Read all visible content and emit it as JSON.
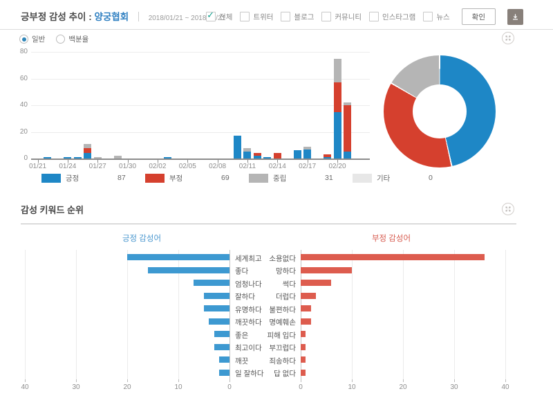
{
  "header": {
    "title_prefix": "긍부정 감성 추이 :",
    "title_keyword": "양궁협회",
    "date_range": "2018/01/21 ~ 2018/02/21",
    "filters": [
      {
        "label": "전체",
        "checked": true
      },
      {
        "label": "트위터",
        "checked": false
      },
      {
        "label": "블로그",
        "checked": false
      },
      {
        "label": "커뮤니티",
        "checked": false
      },
      {
        "label": "인스타그램",
        "checked": false
      },
      {
        "label": "뉴스",
        "checked": false
      }
    ],
    "confirm_label": "확인"
  },
  "trend_section": {
    "view_modes": [
      {
        "label": "일반",
        "selected": true
      },
      {
        "label": "백분율",
        "selected": false
      }
    ],
    "legend": [
      {
        "label": "긍정",
        "value": "87",
        "color": "#1e87c6"
      },
      {
        "label": "부정",
        "value": "69",
        "color": "#d5402e"
      },
      {
        "label": "중립",
        "value": "31",
        "color": "#b5b5b5"
      },
      {
        "label": "기타",
        "value": "0",
        "color": "#e7e7e7"
      }
    ]
  },
  "keyword_section": {
    "title": "감성 키워드 순위",
    "positive_title": "긍정 감성어",
    "negative_title": "부정 감성어"
  },
  "chart_data": [
    {
      "type": "bar",
      "subtype": "stacked-vertical-time",
      "title": "긍부정 감성 추이 : 양궁협회",
      "x_tick_labels": [
        "01/21",
        "01/24",
        "01/27",
        "01/30",
        "02/02",
        "02/05",
        "02/08",
        "02/11",
        "02/14",
        "02/17",
        "02/20"
      ],
      "y_ticks": [
        0,
        20,
        40,
        60,
        80
      ],
      "ylim": [
        0,
        80
      ],
      "series_order": [
        "positive",
        "negative",
        "neutral"
      ],
      "series_colors": {
        "positive": "#1e87c6",
        "negative": "#d5402e",
        "neutral": "#b5b5b5"
      },
      "bars": [
        {
          "date": "01/22",
          "positive": 1,
          "negative": 0,
          "neutral": 0
        },
        {
          "date": "01/24",
          "positive": 1,
          "negative": 0,
          "neutral": 0
        },
        {
          "date": "01/25",
          "positive": 1,
          "negative": 0,
          "neutral": 0
        },
        {
          "date": "01/26",
          "positive": 4,
          "negative": 4,
          "neutral": 3
        },
        {
          "date": "01/27",
          "positive": 0,
          "negative": 0,
          "neutral": 1
        },
        {
          "date": "01/29",
          "positive": 0,
          "negative": 0,
          "neutral": 2
        },
        {
          "date": "02/03",
          "positive": 1,
          "negative": 0,
          "neutral": 0
        },
        {
          "date": "02/10",
          "positive": 17,
          "negative": 0,
          "neutral": 0
        },
        {
          "date": "02/11",
          "positive": 5,
          "negative": 0,
          "neutral": 3
        },
        {
          "date": "02/12",
          "positive": 2,
          "negative": 2,
          "neutral": 0
        },
        {
          "date": "02/13",
          "positive": 1,
          "negative": 0,
          "neutral": 0
        },
        {
          "date": "02/14",
          "positive": 0,
          "negative": 4,
          "neutral": 0
        },
        {
          "date": "02/16",
          "positive": 6,
          "negative": 0,
          "neutral": 0
        },
        {
          "date": "02/17",
          "positive": 7,
          "negative": 0,
          "neutral": 2
        },
        {
          "date": "02/19",
          "positive": 1,
          "negative": 2,
          "neutral": 0
        },
        {
          "date": "02/20",
          "positive": 35,
          "negative": 22,
          "neutral": 18
        },
        {
          "date": "02/21",
          "positive": 5,
          "negative": 35,
          "neutral": 2
        }
      ]
    },
    {
      "type": "pie",
      "subtype": "donut",
      "slices": [
        {
          "label": "긍정",
          "value": 87,
          "color": "#1e87c6"
        },
        {
          "label": "부정",
          "value": 69,
          "color": "#d5402e"
        },
        {
          "label": "중립",
          "value": 31,
          "color": "#b5b5b5"
        },
        {
          "label": "기타",
          "value": 0,
          "color": "#e7e7e7"
        }
      ]
    },
    {
      "type": "bar",
      "subtype": "horizontal-reversed",
      "title": "긍정 감성어",
      "categories": [
        "세계최고",
        "좋다",
        "엄청나다",
        "잘하다",
        "유명하다",
        "깨끗하다",
        "좋은",
        "최고이다",
        "깨끗",
        "일 잘하다"
      ],
      "values": [
        20,
        16,
        7,
        5,
        5,
        4,
        3,
        3,
        2,
        2
      ],
      "x_ticks": [
        40,
        30,
        20,
        10,
        0
      ],
      "xlim": [
        0,
        40
      ],
      "color": "#3d99d1"
    },
    {
      "type": "bar",
      "subtype": "horizontal",
      "title": "부정 감성어",
      "categories": [
        "소용없다",
        "망하다",
        "썩다",
        "더럽다",
        "불편하다",
        "명예훼손",
        "피해 입다",
        "부끄럽다",
        "죄송하다",
        "답 없다"
      ],
      "values": [
        36,
        10,
        6,
        3,
        2,
        2,
        1,
        1,
        1,
        1
      ],
      "x_ticks": [
        0,
        10,
        20,
        30,
        40
      ],
      "xlim": [
        0,
        40
      ],
      "color": "#dd5c4e"
    }
  ]
}
